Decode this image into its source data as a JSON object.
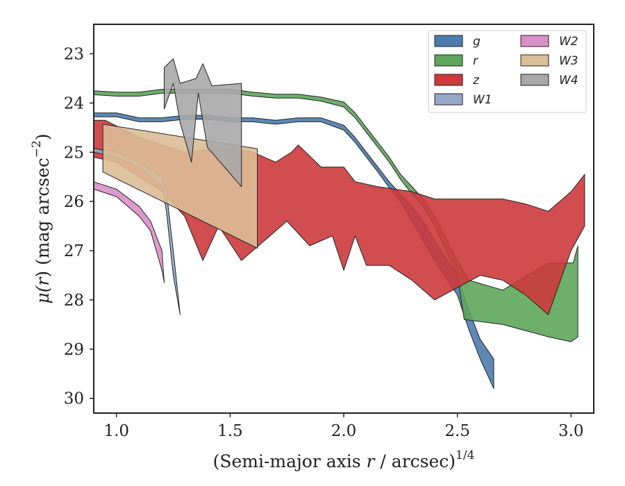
{
  "chart_data": {
    "type": "area",
    "xlabel_main": "(Semi-major axis ",
    "xlabel_var": "r",
    "xlabel_unit": " / arcsec)",
    "xlabel_sup": "1/4",
    "ylabel_main": "μ(",
    "ylabel_var": "r",
    "ylabel_unit": ") (mag arcsec",
    "ylabel_sup": "−2",
    "ylabel_end": ")",
    "xlim": [
      0.9,
      3.1
    ],
    "ylim": [
      30.3,
      22.4
    ],
    "y_inverted": true,
    "x_ticks": [
      {
        "value": 1.0,
        "label": "1.0"
      },
      {
        "value": 1.5,
        "label": "1.5"
      },
      {
        "value": 2.0,
        "label": "2.0"
      },
      {
        "value": 2.5,
        "label": "2.5"
      },
      {
        "value": 3.0,
        "label": "3.0"
      }
    ],
    "y_ticks": [
      {
        "value": 23,
        "label": "23"
      },
      {
        "value": 24,
        "label": "24"
      },
      {
        "value": 25,
        "label": "25"
      },
      {
        "value": 26,
        "label": "26"
      },
      {
        "value": 27,
        "label": "27"
      },
      {
        "value": 28,
        "label": "28"
      },
      {
        "value": 29,
        "label": "29"
      },
      {
        "value": 30,
        "label": "30"
      }
    ],
    "grid": false,
    "legend_position": "top-right",
    "legend_columns": 2,
    "series": [
      {
        "name": "g",
        "color": "#4c7cad",
        "upper": [
          [
            0.9,
            24.2
          ],
          [
            1.0,
            24.2
          ],
          [
            1.1,
            24.3
          ],
          [
            1.2,
            24.3
          ],
          [
            1.3,
            24.25
          ],
          [
            1.4,
            24.25
          ],
          [
            1.5,
            24.3
          ],
          [
            1.6,
            24.3
          ],
          [
            1.7,
            24.35
          ],
          [
            1.8,
            24.3
          ],
          [
            1.9,
            24.3
          ],
          [
            2.0,
            24.45
          ],
          [
            2.05,
            24.7
          ],
          [
            2.1,
            25.0
          ],
          [
            2.15,
            25.3
          ],
          [
            2.2,
            25.6
          ],
          [
            2.25,
            25.85
          ],
          [
            2.3,
            26.1
          ],
          [
            2.35,
            26.4
          ],
          [
            2.4,
            26.8
          ],
          [
            2.5,
            27.5
          ],
          [
            2.55,
            28.2
          ],
          [
            2.6,
            28.8
          ],
          [
            2.66,
            29.2
          ]
        ],
        "lower": [
          [
            0.9,
            24.28
          ],
          [
            1.0,
            24.28
          ],
          [
            1.1,
            24.38
          ],
          [
            1.2,
            24.38
          ],
          [
            1.3,
            24.33
          ],
          [
            1.4,
            24.33
          ],
          [
            1.5,
            24.38
          ],
          [
            1.6,
            24.38
          ],
          [
            1.7,
            24.43
          ],
          [
            1.8,
            24.38
          ],
          [
            1.9,
            24.38
          ],
          [
            2.0,
            24.55
          ],
          [
            2.05,
            24.8
          ],
          [
            2.1,
            25.1
          ],
          [
            2.15,
            25.4
          ],
          [
            2.2,
            25.72
          ],
          [
            2.25,
            26.0
          ],
          [
            2.3,
            26.4
          ],
          [
            2.35,
            26.8
          ],
          [
            2.4,
            27.2
          ],
          [
            2.5,
            27.9
          ],
          [
            2.55,
            28.6
          ],
          [
            2.6,
            29.2
          ],
          [
            2.66,
            29.8
          ]
        ]
      },
      {
        "name": "r",
        "color": "#5da65b",
        "upper": [
          [
            0.9,
            23.75
          ],
          [
            1.0,
            23.78
          ],
          [
            1.1,
            23.78
          ],
          [
            1.2,
            23.72
          ],
          [
            1.3,
            23.72
          ],
          [
            1.4,
            23.72
          ],
          [
            1.5,
            23.72
          ],
          [
            1.6,
            23.78
          ],
          [
            1.7,
            23.82
          ],
          [
            1.8,
            23.82
          ],
          [
            1.9,
            23.88
          ],
          [
            2.0,
            23.98
          ],
          [
            2.05,
            24.2
          ],
          [
            2.1,
            24.5
          ],
          [
            2.15,
            24.8
          ],
          [
            2.2,
            25.1
          ],
          [
            2.25,
            25.45
          ],
          [
            2.3,
            25.7
          ],
          [
            2.35,
            25.95
          ],
          [
            2.4,
            26.3
          ],
          [
            2.5,
            27.2
          ],
          [
            2.55,
            27.6
          ],
          [
            2.7,
            27.8
          ],
          [
            2.9,
            27.25
          ],
          [
            3.01,
            27.25
          ],
          [
            3.03,
            26.9
          ]
        ],
        "lower": [
          [
            0.9,
            23.83
          ],
          [
            1.0,
            23.86
          ],
          [
            1.1,
            23.86
          ],
          [
            1.2,
            23.8
          ],
          [
            1.3,
            23.8
          ],
          [
            1.4,
            23.8
          ],
          [
            1.5,
            23.8
          ],
          [
            1.6,
            23.86
          ],
          [
            1.7,
            23.9
          ],
          [
            1.8,
            23.9
          ],
          [
            1.9,
            23.96
          ],
          [
            2.0,
            24.08
          ],
          [
            2.05,
            24.3
          ],
          [
            2.1,
            24.6
          ],
          [
            2.15,
            24.9
          ],
          [
            2.2,
            25.2
          ],
          [
            2.25,
            25.55
          ],
          [
            2.3,
            25.85
          ],
          [
            2.35,
            26.1
          ],
          [
            2.4,
            26.5
          ],
          [
            2.5,
            27.5
          ],
          [
            2.53,
            28.4
          ],
          [
            2.7,
            28.5
          ],
          [
            2.9,
            28.75
          ],
          [
            3.0,
            28.85
          ],
          [
            3.03,
            28.75
          ]
        ]
      },
      {
        "name": "z",
        "color": "#cc3a3d",
        "upper": [
          [
            0.9,
            24.35
          ],
          [
            0.95,
            24.35
          ],
          [
            1.1,
            24.7
          ],
          [
            1.3,
            25.0
          ],
          [
            1.5,
            24.9
          ],
          [
            1.6,
            25.0
          ],
          [
            1.7,
            25.2
          ],
          [
            1.77,
            25.0
          ],
          [
            1.8,
            24.85
          ],
          [
            1.9,
            25.3
          ],
          [
            2.0,
            25.3
          ],
          [
            2.05,
            25.6
          ],
          [
            2.15,
            25.7
          ],
          [
            2.3,
            25.8
          ],
          [
            2.4,
            25.95
          ],
          [
            2.6,
            25.95
          ],
          [
            2.7,
            25.95
          ],
          [
            2.8,
            26.05
          ],
          [
            2.9,
            26.2
          ],
          [
            3.0,
            25.8
          ],
          [
            3.06,
            25.45
          ]
        ],
        "upper_right_end": [
          3.06,
          26.5
        ],
        "lower": [
          [
            0.9,
            25.1
          ],
          [
            1.0,
            25.2
          ],
          [
            1.2,
            25.8
          ],
          [
            1.3,
            26.3
          ],
          [
            1.38,
            27.2
          ],
          [
            1.45,
            26.5
          ],
          [
            1.55,
            27.2
          ],
          [
            1.65,
            26.8
          ],
          [
            1.75,
            26.4
          ],
          [
            1.85,
            26.9
          ],
          [
            1.95,
            26.7
          ],
          [
            2.0,
            27.4
          ],
          [
            2.05,
            26.7
          ],
          [
            2.1,
            27.3
          ],
          [
            2.2,
            27.3
          ],
          [
            2.3,
            27.6
          ],
          [
            2.4,
            28.0
          ],
          [
            2.6,
            27.5
          ],
          [
            2.7,
            27.6
          ],
          [
            2.8,
            27.9
          ],
          [
            2.9,
            28.3
          ],
          [
            3.0,
            27.0
          ],
          [
            3.06,
            26.5
          ]
        ]
      },
      {
        "name": "W1",
        "color": "#95a7c9",
        "upper": [
          [
            0.9,
            24.92
          ],
          [
            1.0,
            25.0
          ],
          [
            1.1,
            25.2
          ],
          [
            1.2,
            25.5
          ],
          [
            1.22,
            25.8
          ],
          [
            1.25,
            27.0
          ],
          [
            1.28,
            28.3
          ]
        ],
        "lower": [
          [
            0.9,
            25.0
          ],
          [
            1.0,
            25.1
          ],
          [
            1.1,
            25.3
          ],
          [
            1.2,
            25.7
          ],
          [
            1.22,
            26.2
          ],
          [
            1.25,
            27.5
          ],
          [
            1.28,
            28.3
          ]
        ]
      },
      {
        "name": "W2",
        "color": "#d990c8",
        "upper": [
          [
            0.9,
            25.6
          ],
          [
            1.0,
            25.75
          ],
          [
            1.1,
            26.1
          ],
          [
            1.15,
            26.4
          ],
          [
            1.2,
            27.0
          ],
          [
            1.21,
            27.65
          ]
        ],
        "lower": [
          [
            0.9,
            25.75
          ],
          [
            1.0,
            25.9
          ],
          [
            1.1,
            26.3
          ],
          [
            1.15,
            26.6
          ],
          [
            1.2,
            27.4
          ],
          [
            1.21,
            27.65
          ]
        ]
      },
      {
        "name": "W3",
        "color": "#dbbd96",
        "upper": [
          [
            0.94,
            24.43
          ],
          [
            1.62,
            24.93
          ]
        ],
        "lower": [
          [
            0.94,
            25.4
          ],
          [
            1.62,
            26.95
          ]
        ]
      },
      {
        "name": "W4",
        "color": "#a8a8a8",
        "upper": [
          [
            1.21,
            23.28
          ],
          [
            1.25,
            23.1
          ],
          [
            1.28,
            23.6
          ],
          [
            1.35,
            23.5
          ],
          [
            1.38,
            23.2
          ],
          [
            1.42,
            23.65
          ],
          [
            1.55,
            23.6
          ]
        ],
        "lower": [
          [
            1.21,
            24.12
          ],
          [
            1.25,
            23.6
          ],
          [
            1.28,
            24.4
          ],
          [
            1.33,
            25.2
          ],
          [
            1.36,
            23.8
          ],
          [
            1.4,
            24.9
          ],
          [
            1.55,
            25.7
          ]
        ]
      }
    ]
  }
}
